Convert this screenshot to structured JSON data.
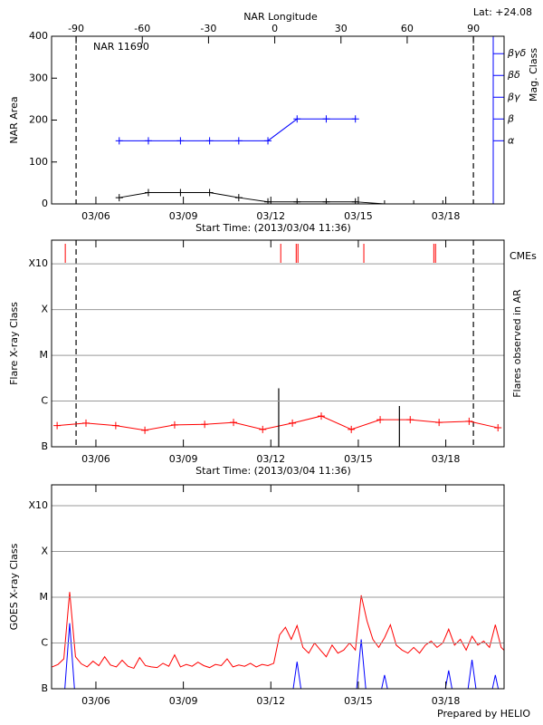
{
  "chart_data": [
    {
      "type": "line",
      "title": "NAR 11690",
      "annotation": "Lat: +24.08",
      "x2label": "NAR Longitude",
      "ylabel": "NAR Area",
      "y2label": "Mag. Class",
      "xlabel": "Start Time: (2013/03/04 11:36)",
      "xlim": [
        4.48,
        20.0
      ],
      "xticks": [
        {
          "value": 6,
          "label": "03/06"
        },
        {
          "value": 9,
          "label": "03/09"
        },
        {
          "value": 12,
          "label": "03/12"
        },
        {
          "value": 15,
          "label": "03/15"
        },
        {
          "value": 18,
          "label": "03/18"
        }
      ],
      "x2lim": [
        -101.1,
        103.9
      ],
      "x2ticks": [
        -90,
        -60,
        -30,
        0,
        30,
        60,
        90
      ],
      "ylim": [
        0,
        400
      ],
      "yticks": [
        0,
        100,
        200,
        300,
        400
      ],
      "y2lim": [
        -1.9,
        5.8
      ],
      "y2ticks": [
        {
          "value": 1,
          "label": "α"
        },
        {
          "value": 2,
          "label": "β"
        },
        {
          "value": 3,
          "label": "βγ"
        },
        {
          "value": 4,
          "label": "βδ"
        },
        {
          "value": 5,
          "label": "βγδ"
        }
      ],
      "y2color": "#0000ff",
      "series": [
        {
          "color": "#000000",
          "x": [
            6.8,
            7.8,
            8.9,
            9.9,
            10.9,
            11.9,
            12.9,
            13.9,
            14.9,
            15.9,
            16.9,
            17.9
          ],
          "values": [
            15,
            27,
            27,
            27,
            15,
            5,
            5,
            5,
            5,
            0,
            0,
            0
          ]
        },
        {
          "color": "#0000ff",
          "axis": "y2",
          "x": [
            6.8,
            7.8,
            8.9,
            9.9,
            10.9,
            11.9,
            12.9,
            13.9,
            14.9
          ],
          "values": [
            1,
            1,
            1,
            1,
            1,
            1,
            2,
            2,
            2
          ]
        }
      ]
    },
    {
      "type": "line",
      "ylabel": "Flare X-ray Class",
      "y2label": "Flares observed in AR",
      "xlabel": "Start Time: (2013/03/04 11:36)",
      "xlim": [
        4.48,
        20.0
      ],
      "xticks": [
        {
          "value": 6,
          "label": "03/06"
        },
        {
          "value": 9,
          "label": "03/09"
        },
        {
          "value": 12,
          "label": "03/12"
        },
        {
          "value": 15,
          "label": "03/15"
        },
        {
          "value": 18,
          "label": "03/18"
        }
      ],
      "log": true,
      "grid": true,
      "ylim": [
        1e-07,
        0.0033
      ],
      "yticks": [
        {
          "value": 1e-07,
          "label": "B"
        },
        {
          "value": 1e-06,
          "label": "C"
        },
        {
          "value": 1e-05,
          "label": "M"
        },
        {
          "value": 0.0001,
          "label": "X"
        },
        {
          "value": 0.001,
          "label": "X10"
        }
      ],
      "series": [
        {
          "color": "#ff0000",
          "style": "line",
          "x": [
            4.67,
            5.66,
            6.68,
            7.68,
            8.7,
            9.73,
            10.72,
            11.72,
            12.74,
            13.73,
            14.76,
            15.75,
            16.78,
            17.77,
            18.8,
            19.79
          ],
          "values": [
            2.9e-07,
            3.3e-07,
            2.9e-07,
            2.3e-07,
            3e-07,
            3.1e-07,
            3.4e-07,
            2.4e-07,
            3.3e-07,
            4.7e-07,
            2.4e-07,
            3.9e-07,
            3.9e-07,
            3.4e-07,
            3.6e-07,
            2.6e-07
          ]
        },
        {
          "color": "#000000",
          "style": "stem",
          "x": [
            12.27,
            16.41
          ],
          "values": [
            1.9e-06,
            7.8e-07
          ]
        },
        {
          "name": "CMEs",
          "color": "#ff0000",
          "style": "event",
          "x": [
            4.95,
            12.34,
            12.87,
            12.93,
            15.19,
            17.59,
            17.65
          ]
        }
      ]
    },
    {
      "type": "line",
      "ylabel": "GOES X-ray Class",
      "xlim": [
        4.48,
        20.0
      ],
      "xticks": [
        {
          "value": 6,
          "label": "03/06"
        },
        {
          "value": 9,
          "label": "03/09"
        },
        {
          "value": 12,
          "label": "03/12"
        },
        {
          "value": 15,
          "label": "03/15"
        },
        {
          "value": 18,
          "label": "03/18"
        }
      ],
      "log": true,
      "grid": true,
      "ylim": [
        1e-07,
        0.00285
      ],
      "yticks": [
        {
          "value": 1e-07,
          "label": "B"
        },
        {
          "value": 1e-06,
          "label": "C"
        },
        {
          "value": 1e-05,
          "label": "M"
        },
        {
          "value": 0.0001,
          "label": "X"
        },
        {
          "value": 0.001,
          "label": "X10"
        }
      ],
      "footer": "Prepared by HELIO",
      "series": [
        {
          "color": "#ff0000",
          "style": "line",
          "x": [
            4.5,
            4.7,
            4.9,
            5.1,
            5.3,
            5.5,
            5.7,
            5.9,
            6.1,
            6.3,
            6.5,
            6.7,
            6.9,
            7.1,
            7.3,
            7.5,
            7.7,
            7.9,
            8.1,
            8.3,
            8.5,
            8.7,
            8.9,
            9.1,
            9.3,
            9.5,
            9.7,
            9.9,
            10.1,
            10.3,
            10.5,
            10.7,
            10.9,
            11.1,
            11.3,
            11.5,
            11.7,
            11.9,
            12.1,
            12.3,
            12.5,
            12.7,
            12.9,
            13.1,
            13.3,
            13.5,
            13.7,
            13.9,
            14.1,
            14.3,
            14.5,
            14.7,
            14.9,
            15.1,
            15.3,
            15.5,
            15.7,
            15.9,
            16.1,
            16.3,
            16.5,
            16.7,
            16.9,
            17.1,
            17.3,
            17.5,
            17.7,
            17.9,
            18.1,
            18.3,
            18.5,
            18.7,
            18.9,
            19.1,
            19.3,
            19.5,
            19.7,
            19.9,
            20.1
          ],
          "values": [
            3e-07,
            3.4e-07,
            4.5e-07,
            1.3e-05,
            5e-07,
            3.5e-07,
            3e-07,
            4e-07,
            3.2e-07,
            5e-07,
            3.3e-07,
            3e-07,
            4.2e-07,
            3.1e-07,
            2.8e-07,
            4.8e-07,
            3.2e-07,
            3e-07,
            2.9e-07,
            3.6e-07,
            3.1e-07,
            5.5e-07,
            3e-07,
            3.4e-07,
            3.1e-07,
            3.8e-07,
            3.2e-07,
            2.9e-07,
            3.4e-07,
            3.2e-07,
            4.5e-07,
            3e-07,
            3.3e-07,
            3.1e-07,
            3.6e-07,
            3e-07,
            3.4e-07,
            3.2e-07,
            3.6e-07,
            1.5e-06,
            2.2e-06,
            1.2e-06,
            2.4e-06,
            8e-07,
            6e-07,
            1e-06,
            7e-07,
            5e-07,
            9e-07,
            6e-07,
            7e-07,
            1e-06,
            7e-07,
            1.1e-05,
            3e-06,
            1.2e-06,
            8e-07,
            1.3e-06,
            2.5e-06,
            9e-07,
            7e-07,
            6e-07,
            8e-07,
            6e-07,
            9e-07,
            1.1e-06,
            8e-07,
            1e-06,
            2e-06,
            9e-07,
            1.2e-06,
            7e-07,
            1.4e-06,
            9e-07,
            1.1e-06,
            8e-07,
            2.5e-06,
            8e-07,
            6e-07
          ]
        },
        {
          "color": "#0000ff",
          "style": "line",
          "x": [
            4.5,
            4.7,
            4.9,
            5.1,
            5.3,
            5.5,
            5.7,
            5.9,
            6.1,
            6.3,
            6.5,
            6.7,
            6.9,
            7.1,
            7.3,
            7.5,
            7.7,
            7.9,
            8.1,
            8.3,
            8.5,
            8.7,
            8.9,
            9.1,
            9.3,
            9.5,
            9.7,
            9.9,
            10.1,
            10.3,
            10.5,
            10.7,
            10.9,
            11.1,
            11.3,
            11.5,
            11.7,
            11.9,
            12.1,
            12.3,
            12.5,
            12.7,
            12.9,
            13.1,
            13.3,
            13.5,
            13.7,
            13.9,
            14.1,
            14.3,
            14.5,
            14.7,
            14.9,
            15.1,
            15.3,
            15.5,
            15.7,
            15.9,
            16.1,
            16.3,
            16.5,
            16.7,
            16.9,
            17.1,
            17.3,
            17.5,
            17.7,
            17.9,
            18.1,
            18.3,
            18.5,
            18.7,
            18.9,
            19.1,
            19.3,
            19.5,
            19.7,
            19.9,
            20.1
          ],
          "values": [
            5e-08,
            5e-08,
            5e-08,
            2.7e-06,
            5e-08,
            5e-08,
            5e-08,
            5e-08,
            5e-08,
            5e-08,
            5e-08,
            5e-08,
            5e-08,
            5e-08,
            5e-08,
            5e-08,
            5e-08,
            5e-08,
            5e-08,
            5e-08,
            5e-08,
            5e-08,
            5e-08,
            5e-08,
            5e-08,
            5e-08,
            5e-08,
            5e-08,
            5e-08,
            5e-08,
            5e-08,
            5e-08,
            5e-08,
            5e-08,
            5e-08,
            5e-08,
            5e-08,
            5e-08,
            5e-08,
            5e-08,
            5e-08,
            5e-08,
            3.9e-07,
            5e-08,
            5e-08,
            5e-08,
            5e-08,
            5e-08,
            5e-08,
            5e-08,
            5e-08,
            5e-08,
            5e-08,
            1.2e-06,
            5e-08,
            5e-08,
            5e-08,
            2e-07,
            5e-08,
            5e-08,
            5e-08,
            5e-08,
            5e-08,
            5e-08,
            5e-08,
            5e-08,
            5e-08,
            5e-08,
            2.5e-07,
            5e-08,
            5e-08,
            5e-08,
            4.3e-07,
            5e-08,
            5e-08,
            5e-08,
            2e-07,
            5e-08,
            5e-08
          ]
        }
      ]
    }
  ]
}
